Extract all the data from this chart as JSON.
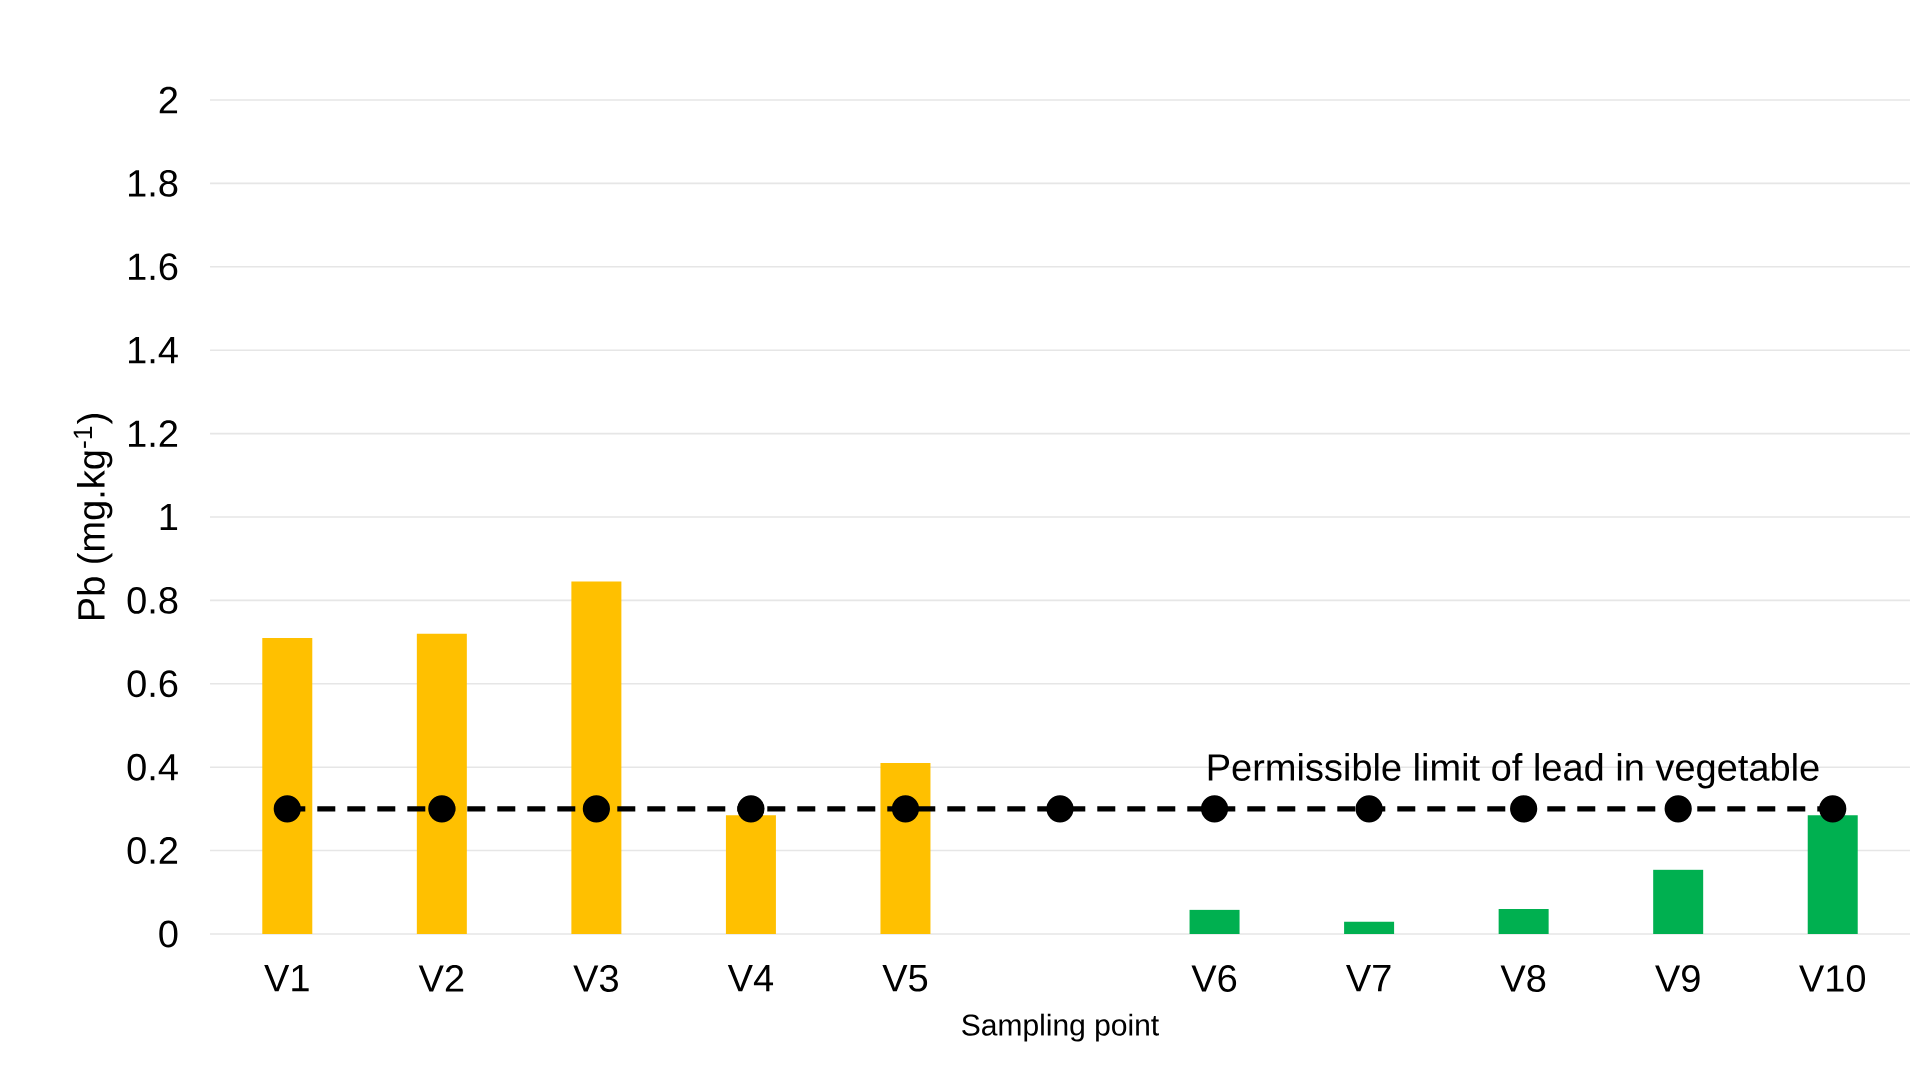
{
  "chart_data": {
    "type": "bar",
    "xlabel": "Sampling point",
    "ylabel": "Pb (mg.kg$^{-1}$)",
    "categories": [
      "V1",
      "V2",
      "V3",
      "V4",
      "V5",
      null,
      "V6",
      "V7",
      "V8",
      "V9",
      "V10"
    ],
    "series": [
      {
        "colors": [
          "#ffc000",
          "#ffc000",
          "#ffc000",
          "#ffc000",
          "#ffc000",
          "#ffc000",
          "#00b050",
          "#00b050",
          "#00b050",
          "#00b050",
          "#00b050"
        ],
        "values": [
          0.71,
          0.72,
          0.845,
          0.285,
          0.41,
          null,
          0.058,
          0.03,
          0.06,
          0.154,
          0.285
        ]
      },
      {
        "type": "line",
        "name": "Permissible limit of lead in vegetable",
        "color": "#000000",
        "marker": "circle",
        "line_style": "dashed",
        "values": [
          0.3,
          0.3,
          0.3,
          0.3,
          0.3,
          0.3,
          0.3,
          0.3,
          0.3,
          0.3,
          0.3
        ]
      }
    ],
    "ylim": [
      0,
      2
    ],
    "yticks": [
      0,
      0.2,
      0.4,
      0.6,
      0.8,
      1,
      1.2,
      1.4,
      1.6,
      1.8,
      2
    ],
    "grid": "y"
  }
}
